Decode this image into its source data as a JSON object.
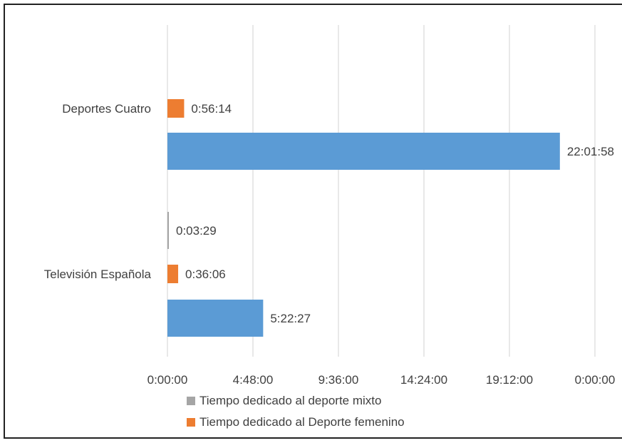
{
  "chart_data": {
    "type": "bar",
    "orientation": "horizontal",
    "categories": [
      "Televisión Española",
      "Deportes Cuatro"
    ],
    "x_ticks": [
      "0:00:00",
      "4:48:00",
      "9:36:00",
      "14:24:00",
      "19:12:00",
      "0:00:00"
    ],
    "xlim": [
      "0:00:00",
      "24:00:00"
    ],
    "grid": true,
    "legend_position": "bottom",
    "series": [
      {
        "key": "total",
        "color": "#5b9bd5",
        "values": [
          "5:22:27",
          "22:01:58"
        ],
        "labels": [
          "5:22:27",
          "22:01:58"
        ]
      },
      {
        "key": "femenino",
        "name": "Tiempo dedicado al Deporte femenino",
        "color": "#ed7d31",
        "values": [
          "0:36:06",
          "0:56:14"
        ],
        "labels": [
          "0:36:06",
          "0:56:14"
        ]
      },
      {
        "key": "mixto",
        "name": "Tiempo dedicado al deporte mixto",
        "color": "#a5a5a5",
        "values": [
          "0:03:29",
          null
        ],
        "labels": [
          "0:03:29",
          null
        ]
      }
    ],
    "legend": [
      {
        "label": "Tiempo dedicado al deporte mixto",
        "color": "#a5a5a5"
      },
      {
        "label": "Tiempo dedicado al Deporte femenino",
        "color": "#ed7d31"
      }
    ]
  }
}
